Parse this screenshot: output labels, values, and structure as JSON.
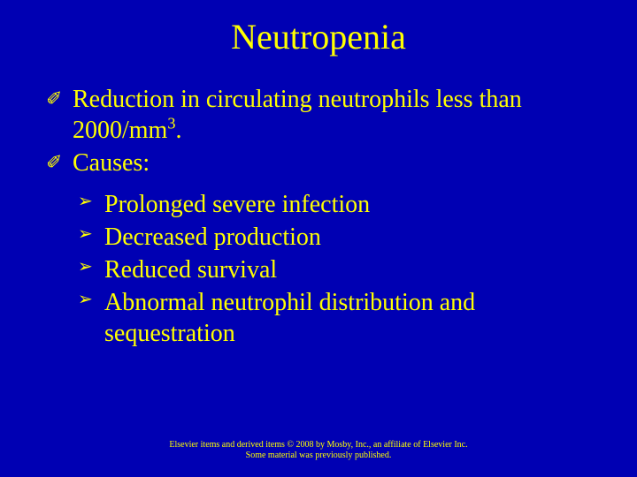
{
  "title": {
    "text": "Neutropenia",
    "color": "#ffff00",
    "fontsize": 40
  },
  "body": {
    "color": "#ffff00",
    "fontsize": 28
  },
  "main_bullet_glyph": "✐",
  "main_items": [
    {
      "html": "Reduction in circulating neutrophils less than 2000/mm<sup>3</sup>."
    },
    {
      "html": "Causes:"
    }
  ],
  "sub_bullet_glyph": "➢",
  "sub_items": [
    {
      "text": "Prolonged severe infection"
    },
    {
      "text": "Decreased production"
    },
    {
      "text": "Reduced survival"
    },
    {
      "text": "Abnormal neutrophil distribution and sequestration"
    }
  ],
  "footer": {
    "line1": "Elsevier items and derived items © 2008 by Mosby, Inc., an affiliate of Elsevier Inc.",
    "line2": "Some material was previously published.",
    "color": "#ffff00",
    "fontsize": 10
  },
  "background_color": "#0000b3"
}
